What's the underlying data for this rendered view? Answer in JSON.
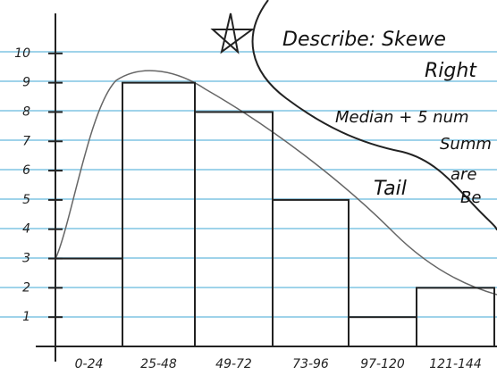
{
  "chart_data": {
    "type": "bar",
    "categories": [
      "0-24",
      "25-48",
      "49-72",
      "73-96",
      "97-120",
      "121-144"
    ],
    "values": [
      3,
      9,
      8,
      5,
      1,
      2
    ],
    "color": "#222",
    "ylim": [
      0,
      11
    ],
    "yticks": [
      1,
      2,
      3,
      4,
      5,
      6,
      7,
      8,
      9,
      10
    ],
    "annotations": [
      "Describe: Skewe",
      "Right",
      "Median + 5 num",
      "Summ",
      "are",
      "Be",
      "Tail"
    ]
  }
}
